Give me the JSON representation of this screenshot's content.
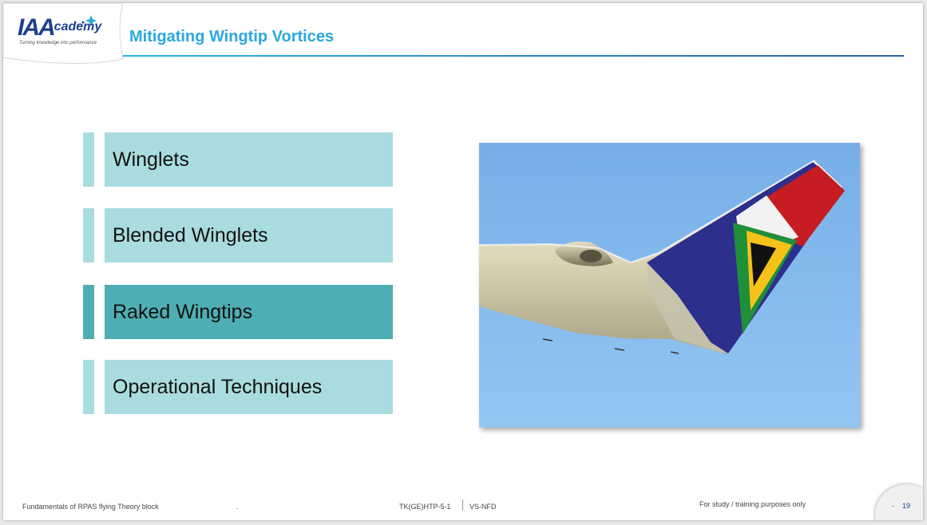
{
  "header": {
    "logo_main": "IAA",
    "logo_sub": "cademy",
    "logo_tagline": "Turning knowledge into performance",
    "title": "Mitigating Wingtip Vortices"
  },
  "items": [
    {
      "label": "Winglets",
      "active": false
    },
    {
      "label": "Blended Winglets",
      "active": false
    },
    {
      "label": "Raked Wingtips",
      "active": true
    },
    {
      "label": "Operational Techniques",
      "active": false
    }
  ],
  "footer": {
    "left": "Fundamentals of RPAS flying Theory block",
    "dot": ".",
    "code": "TK(GE)HTP-5-1",
    "code2": "VS-NFD",
    "notice": "For study / training purposes only",
    "page_prefix": "-",
    "page": "19"
  },
  "colors": {
    "title": "#29a8df",
    "item_normal": "#a9dcdf",
    "item_active": "#4eaeb3"
  }
}
